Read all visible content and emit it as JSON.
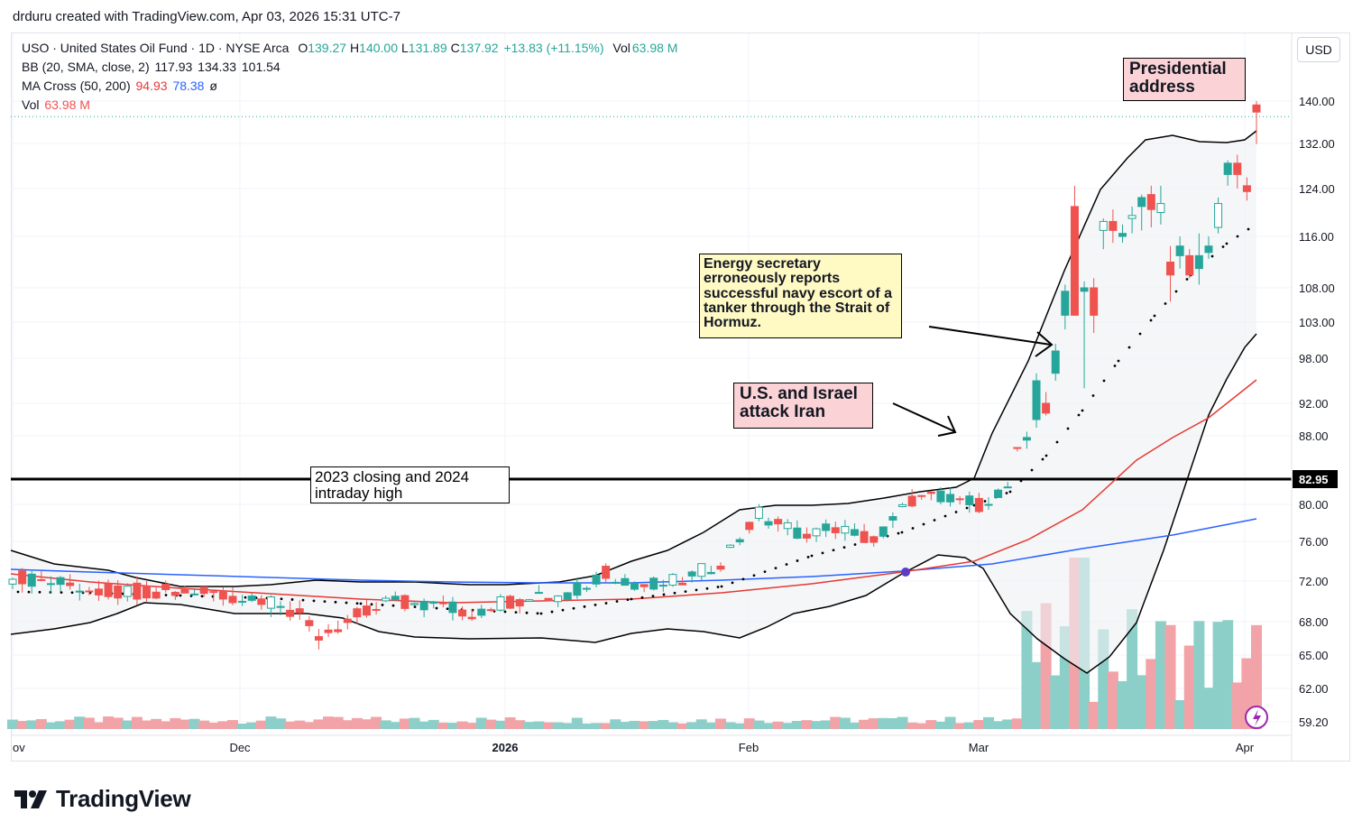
{
  "header": {
    "text": "drduru created with TradingView.com, Apr 03, 2026 15:31 UTC-7"
  },
  "legend": {
    "symbol": "USO · United States Oil Fund · 1D · NYSE Arca",
    "ohlc": [
      {
        "k": "O",
        "v": "139.27"
      },
      {
        "k": "H",
        "v": "140.00"
      },
      {
        "k": "L",
        "v": "131.89"
      },
      {
        "k": "C",
        "v": "137.92"
      }
    ],
    "change": "+13.83 (+11.15%)",
    "vol_label": "Vol",
    "vol_value": "63.98 M",
    "bb_label": "BB (20, SMA, close, 2)",
    "bb_values": [
      "117.93",
      "134.33",
      "101.54"
    ],
    "ma_label": "MA Cross (50, 200)",
    "ma_values": [
      "94.93",
      "78.38",
      "ø"
    ],
    "vol2_label": "Vol",
    "vol2_value": "63.98 M"
  },
  "currency_button": "USD",
  "brand": "TradingView",
  "colors": {
    "up": "#26a69a",
    "down": "#ef5350",
    "ma50": "#e53935",
    "ma200": "#2962ff",
    "bb": "#000000",
    "legend_value": "#26a69a",
    "ma50_value": "#e53935",
    "ma200_value": "#2962ff",
    "vol_value": "#ef5350"
  },
  "annotations": {
    "presidential": "Presidential address",
    "israel": "U.S. and Israel attack Iran",
    "energy": "Energy secretary erroneously reports successful navy escort of a tanker through the Strait of Hormuz.",
    "high_level": "2023 closing and 2024 intraday high"
  },
  "chart_data": {
    "type": "candlestick",
    "x_ticks": [
      "Nov",
      "Dec",
      "2026",
      "Feb",
      "Mar",
      "Apr"
    ],
    "y_ticks": [
      140,
      132,
      124,
      116,
      108,
      103,
      98,
      92,
      88,
      82.95,
      80,
      76,
      72,
      68,
      65,
      62,
      59.2
    ],
    "y_tick_labels": [
      "140.00",
      "132.00",
      "124.00",
      "116.00",
      "108.00",
      "103.00",
      "98.00",
      "92.00",
      "88.00",
      "82.95",
      "80.00",
      "76.00",
      "72.00",
      "68.00",
      "65.00",
      "62.00",
      "59.20"
    ],
    "last_price": 137.92,
    "horizontal_line": 82.95,
    "grid": true,
    "candles_recent": [
      {
        "date": "Mar 24",
        "o": 111.0,
        "h": 116.5,
        "l": 108.5,
        "c": 113.0
      },
      {
        "date": "Mar 25",
        "o": 113.5,
        "h": 116.0,
        "l": 112.5,
        "c": 114.5
      },
      {
        "date": "Mar 26",
        "o": 117.5,
        "h": 122.5,
        "l": 116.5,
        "c": 121.5
      },
      {
        "date": "Mar 27",
        "o": 126.5,
        "h": 129.0,
        "l": 124.5,
        "c": 128.5
      },
      {
        "date": "Mar 30",
        "o": 128.5,
        "h": 130.0,
        "l": 124.0,
        "c": 126.5
      },
      {
        "date": "Mar 31",
        "o": 124.5,
        "h": 126.0,
        "l": 122.0,
        "c": 123.5
      },
      {
        "date": "Apr 02",
        "o": 139.27,
        "h": 140.0,
        "l": 131.89,
        "c": 137.92
      }
    ],
    "volume_last": "63.98 M"
  }
}
